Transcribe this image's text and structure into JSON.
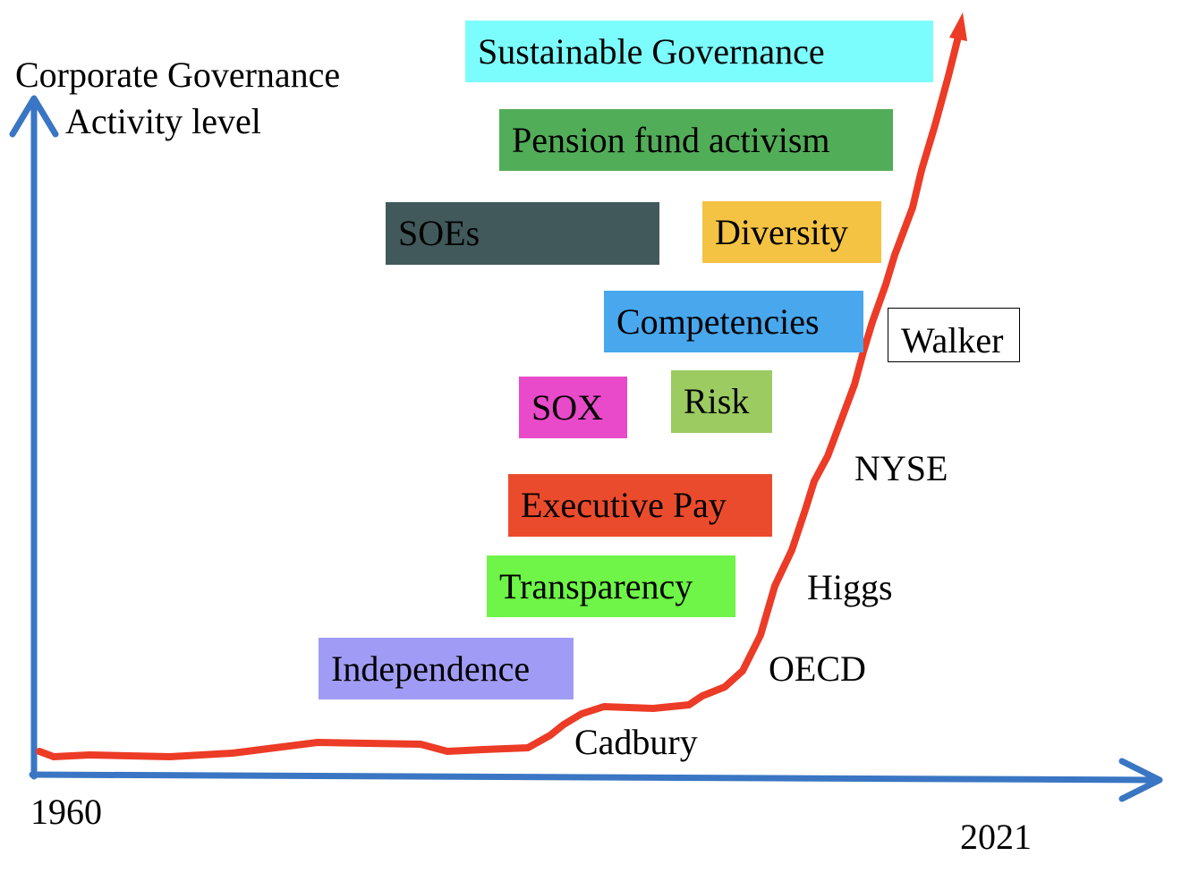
{
  "y_axis_title": {
    "line1": "Corporate Governance",
    "line2": "Activity level"
  },
  "x_axis": {
    "start_label": "1960",
    "end_label": "2021"
  },
  "colors": {
    "axis": "#3a76c3",
    "curve": "#ec3b26"
  },
  "themes": {
    "sustainable_governance": {
      "label": "Sustainable Governance",
      "color": "#7cfdfd"
    },
    "pension_fund_activism": {
      "label": "Pension fund activism",
      "color": "#52ad58"
    },
    "soes": {
      "label": "SOEs",
      "color": "#41595b"
    },
    "diversity": {
      "label": "Diversity",
      "color": "#f4c343"
    },
    "competencies": {
      "label": "Competencies",
      "color": "#48a7ed"
    },
    "sox": {
      "label": "SOX",
      "color": "#e84ac9"
    },
    "risk": {
      "label": "Risk",
      "color": "#9ccb62"
    },
    "executive_pay": {
      "label": "Executive Pay",
      "color": "#eb4b2d"
    },
    "transparency": {
      "label": "Transparency",
      "color": "#6ef547"
    },
    "independence": {
      "label": "Independence",
      "color": "#a09cf5"
    }
  },
  "milestones": {
    "walker": "Walker",
    "nyse": "NYSE",
    "higgs": "Higgs",
    "oecd": "OECD",
    "cadbury": "Cadbury"
  }
}
